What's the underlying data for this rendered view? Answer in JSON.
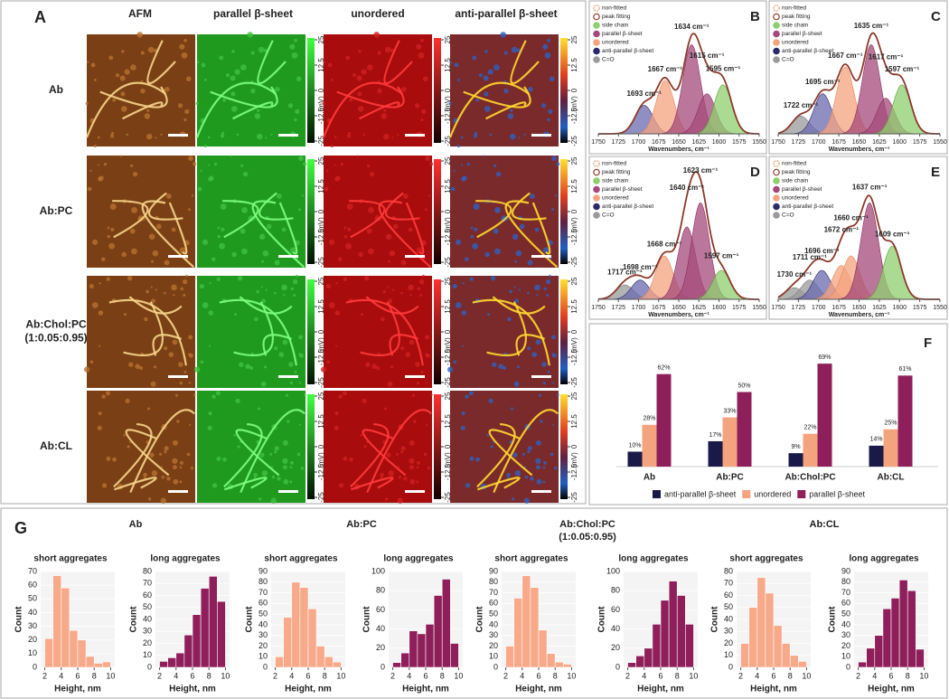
{
  "panel_a": {
    "letter": "A",
    "columns": [
      "AFM",
      "parallel β-sheet",
      "unordered",
      "anti-parallel β-sheet"
    ],
    "rows": [
      [
        "Ab"
      ],
      [
        "Ab:PC"
      ],
      [
        "Ab:Chol:PC",
        "(1:0.05:0.95)"
      ],
      [
        "Ab:CL"
      ]
    ],
    "colorbar_ticks": [
      25,
      12.5,
      0,
      -12.5,
      -25
    ],
    "colorbar_unit": "(mV)"
  },
  "panel_g": {
    "letter": "G",
    "groups": [
      [
        "Ab"
      ],
      [
        "Ab:PC"
      ],
      [
        "Ab:Chol:PC",
        "(1:0.05:0.95)"
      ],
      [
        "Ab:CL"
      ]
    ]
  },
  "chart_data": [
    {
      "type": "spectrum",
      "panel": "B",
      "xlim": [
        1750,
        1550
      ],
      "xticks": [
        1750,
        1725,
        1700,
        1675,
        1650,
        1625,
        1600,
        1575,
        1550
      ],
      "xlabel": "Wavenumbers, cm⁻¹",
      "legend": [
        {
          "name": "non-fitted",
          "color": "#e8a070"
        },
        {
          "name": "peak fitting",
          "color": "#8b3a2a"
        },
        {
          "name": "side chain",
          "color": "#8fcf6f"
        },
        {
          "name": "parallel β-sheet",
          "color": "#a4497a"
        },
        {
          "name": "unordered",
          "color": "#f4a37f"
        },
        {
          "name": "anti-parallel β-sheet",
          "color": "#2a2a6a"
        },
        {
          "name": "C=O",
          "color": "#9a9a9a"
        }
      ],
      "peaks": [
        {
          "label": "1693 cm⁻¹",
          "center": 1693,
          "height": 0.32,
          "color": "#6a6ab0",
          "label_color": "#2a2a6a"
        },
        {
          "label": "1667 cm⁻¹",
          "center": 1667,
          "height": 0.6,
          "color": "#f4a37f",
          "label_color": "#e8875a"
        },
        {
          "label": "1634 cm⁻¹",
          "center": 1634,
          "height": 1.0,
          "color": "#a4497a",
          "label_color": "#8a2a60"
        },
        {
          "label": "1615 cm⁻¹",
          "center": 1615,
          "height": 0.45,
          "color": "#a4497a",
          "label_color": "#8a2a60"
        },
        {
          "label": "1595 cm⁻¹",
          "center": 1595,
          "height": 0.55,
          "color": "#8fcf6f",
          "label_color": "#5a9a3a"
        }
      ]
    },
    {
      "type": "spectrum",
      "panel": "C",
      "xlim": [
        1750,
        1550
      ],
      "xticks": [
        1750,
        1725,
        1700,
        1675,
        1650,
        1625,
        1600,
        1575,
        1550
      ],
      "xlabel": "Wavenumbers, cm⁻¹",
      "legend": [
        {
          "name": "non-fitted",
          "color": "#e8a070"
        },
        {
          "name": "peak fitting",
          "color": "#8b3a2a"
        },
        {
          "name": "side chain",
          "color": "#8fcf6f"
        },
        {
          "name": "parallel β-sheet",
          "color": "#a4497a"
        },
        {
          "name": "unordered",
          "color": "#f4a37f"
        },
        {
          "name": "anti-parallel β-sheet",
          "color": "#2a2a6a"
        },
        {
          "name": "C=O",
          "color": "#9a9a9a"
        }
      ],
      "peaks": [
        {
          "label": "1722 cm⁻¹",
          "center": 1722,
          "height": 0.2,
          "color": "#9a9a9a",
          "label_color": "#808080"
        },
        {
          "label": "1695 cm⁻¹",
          "center": 1695,
          "height": 0.45,
          "color": "#6a6ab0",
          "label_color": "#2a2a6a"
        },
        {
          "label": "1667 cm⁻¹",
          "center": 1667,
          "height": 0.75,
          "color": "#f4a37f",
          "label_color": "#e8875a"
        },
        {
          "label": "1635 cm⁻¹",
          "center": 1635,
          "height": 1.0,
          "color": "#a4497a",
          "label_color": "#8a2a60"
        },
        {
          "label": "1617 cm⁻¹",
          "center": 1617,
          "height": 0.4,
          "color": "#a4497a",
          "label_color": "#8a2a60"
        },
        {
          "label": "1597 cm⁻¹",
          "center": 1597,
          "height": 0.55,
          "color": "#8fcf6f",
          "label_color": "#5a9a3a"
        }
      ]
    },
    {
      "type": "spectrum",
      "panel": "D",
      "xlim": [
        1750,
        1550
      ],
      "xticks": [
        1750,
        1725,
        1700,
        1675,
        1650,
        1625,
        1600,
        1575,
        1550
      ],
      "xlabel": "Wavenumbers, cm⁻¹",
      "legend": [
        {
          "name": "non-fitted",
          "color": "#e8a070"
        },
        {
          "name": "peak fitting",
          "color": "#8b3a2a"
        },
        {
          "name": "side chain",
          "color": "#8fcf6f"
        },
        {
          "name": "parallel β-sheet",
          "color": "#a4497a"
        },
        {
          "name": "unordered",
          "color": "#f4a37f"
        },
        {
          "name": "anti-parallel β-sheet",
          "color": "#2a2a6a"
        },
        {
          "name": "C=O",
          "color": "#9a9a9a"
        }
      ],
      "peaks": [
        {
          "label": "1717 cm⁻¹",
          "center": 1717,
          "height": 0.15,
          "color": "#9a9a9a",
          "label_color": "#808080"
        },
        {
          "label": "1698 cm⁻¹",
          "center": 1698,
          "height": 0.2,
          "color": "#6a6ab0",
          "label_color": "#2a2a6a"
        },
        {
          "label": "1668 cm⁻¹",
          "center": 1668,
          "height": 0.45,
          "color": "#f4a37f",
          "label_color": "#e8875a"
        },
        {
          "label": "1640 cm⁻¹",
          "center": 1640,
          "height": 0.75,
          "color": "#a4497a",
          "label_color": "#8a2a60"
        },
        {
          "label": "1623 cm⁻¹",
          "center": 1623,
          "height": 1.0,
          "color": "#a4497a",
          "label_color": "#8a2a60"
        },
        {
          "label": "1597 cm⁻¹",
          "center": 1597,
          "height": 0.3,
          "color": "#8fcf6f",
          "label_color": "#5a9a3a"
        }
      ]
    },
    {
      "type": "spectrum",
      "panel": "E",
      "xlim": [
        1750,
        1550
      ],
      "xticks": [
        1750,
        1725,
        1700,
        1675,
        1650,
        1625,
        1600,
        1575,
        1550
      ],
      "xlabel": "Wavenumbers, cm⁻¹",
      "legend": [
        {
          "name": "non-fitted",
          "color": "#e8a070"
        },
        {
          "name": "peak fitting",
          "color": "#8b3a2a"
        },
        {
          "name": "side chain",
          "color": "#8fcf6f"
        },
        {
          "name": "parallel β-sheet",
          "color": "#a4497a"
        },
        {
          "name": "unordered",
          "color": "#f4a37f"
        },
        {
          "name": "anti-parallel β-sheet",
          "color": "#2a2a6a"
        },
        {
          "name": "C=O",
          "color": "#9a9a9a"
        }
      ],
      "peaks": [
        {
          "label": "1730 cm⁻¹",
          "center": 1730,
          "height": 0.12,
          "color": "#9a9a9a",
          "label_color": "#808080"
        },
        {
          "label": "1711 cm⁻¹",
          "center": 1711,
          "height": 0.2,
          "color": "#9a9a9a",
          "label_color": "#808080"
        },
        {
          "label": "1696 cm⁻¹",
          "center": 1696,
          "height": 0.3,
          "color": "#6a6ab0",
          "label_color": "#2a2a6a"
        },
        {
          "label": "1672 cm⁻¹",
          "center": 1672,
          "height": 0.35,
          "color": "#f4a37f",
          "label_color": "#e8875a"
        },
        {
          "label": "1660 cm⁻¹",
          "center": 1660,
          "height": 0.45,
          "color": "#f4a37f",
          "label_color": "#e8875a"
        },
        {
          "label": "1637 cm⁻¹",
          "center": 1637,
          "height": 1.0,
          "color": "#a4497a",
          "label_color": "#8a2a60"
        },
        {
          "label": "1609 cm⁻¹",
          "center": 1609,
          "height": 0.55,
          "color": "#8fcf6f",
          "label_color": "#5a9a3a"
        }
      ]
    },
    {
      "type": "bar",
      "panel": "F",
      "categories": [
        "Ab",
        "Ab:PC",
        "Ab:Chol:PC",
        "Ab:CL"
      ],
      "series": [
        {
          "name": "anti-parallel β-sheet",
          "color": "#1a1a48",
          "values": [
            10,
            17,
            9,
            14
          ],
          "value_labels": [
            "10%",
            "17%",
            "9%",
            "14%"
          ]
        },
        {
          "name": "unordered",
          "color": "#f4a37f",
          "values": [
            28,
            33,
            22,
            25
          ],
          "value_labels": [
            "28%",
            "33%",
            "22%",
            "25%"
          ]
        },
        {
          "name": "parallel β-sheet",
          "color": "#8e1f5a",
          "values": [
            62,
            50,
            69,
            61
          ],
          "value_labels": [
            "62%",
            "50%",
            "69%",
            "61%"
          ]
        }
      ]
    },
    {
      "type": "histogram",
      "title": "short aggregates",
      "xlabel": "Height, nm",
      "ylabel": "Count",
      "color": "#f7a98a",
      "bins": [
        2,
        3,
        4,
        5,
        6,
        7,
        8,
        9,
        10
      ],
      "values": [
        21,
        67,
        58,
        27,
        20,
        8,
        3,
        4
      ],
      "xlim": [
        1.5,
        10.5
      ],
      "xticks": [
        2,
        4,
        6,
        8,
        10
      ],
      "ylim": [
        0,
        70
      ],
      "yticks": [
        0,
        10,
        20,
        30,
        40,
        50,
        60,
        70
      ]
    },
    {
      "type": "histogram",
      "title": "long aggregates",
      "xlabel": "Height, nm",
      "ylabel": "Count",
      "color": "#8e1f5a",
      "bins": [
        2,
        3,
        4,
        5,
        6,
        7,
        8,
        9,
        10
      ],
      "values": [
        5,
        8,
        12,
        27,
        44,
        66,
        76,
        55
      ],
      "xlim": [
        1.5,
        10.5
      ],
      "xticks": [
        2,
        4,
        6,
        8,
        10
      ],
      "ylim": [
        0,
        80
      ],
      "yticks": [
        0,
        10,
        20,
        30,
        40,
        50,
        60,
        70,
        80
      ]
    },
    {
      "type": "histogram",
      "title": "short aggregates",
      "xlabel": "Height, nm",
      "ylabel": "Count",
      "color": "#f7a98a",
      "bins": [
        2,
        3,
        4,
        5,
        6,
        7,
        8,
        9,
        10
      ],
      "values": [
        10,
        47,
        80,
        75,
        55,
        20,
        10,
        5
      ],
      "xlim": [
        1.5,
        10.5
      ],
      "xticks": [
        2,
        4,
        6,
        8,
        10
      ],
      "ylim": [
        0,
        90
      ],
      "yticks": [
        0,
        10,
        20,
        30,
        40,
        50,
        60,
        70,
        80,
        90
      ]
    },
    {
      "type": "histogram",
      "title": "long aggregates",
      "xlabel": "Height, nm",
      "ylabel": "Count",
      "color": "#8e1f5a",
      "bins": [
        2,
        3,
        4,
        5,
        6,
        7,
        8,
        9,
        10
      ],
      "values": [
        5,
        15,
        38,
        35,
        45,
        75,
        92,
        25
      ],
      "xlim": [
        1.5,
        10.5
      ],
      "xticks": [
        2,
        4,
        6,
        8,
        10
      ],
      "ylim": [
        0,
        100
      ],
      "yticks": [
        0,
        20,
        40,
        60,
        80,
        100
      ]
    },
    {
      "type": "histogram",
      "title": "short aggregates",
      "xlabel": "Height, nm",
      "ylabel": "Count",
      "color": "#f7a98a",
      "bins": [
        2,
        3,
        4,
        5,
        6,
        7,
        8,
        9,
        10
      ],
      "values": [
        20,
        65,
        86,
        75,
        35,
        13,
        5,
        3
      ],
      "xlim": [
        1.5,
        10.5
      ],
      "xticks": [
        2,
        4,
        6,
        8,
        10
      ],
      "ylim": [
        0,
        90
      ],
      "yticks": [
        0,
        10,
        20,
        30,
        40,
        50,
        60,
        70,
        80,
        90
      ]
    },
    {
      "type": "histogram",
      "title": "long aggregates",
      "xlabel": "Height, nm",
      "ylabel": "Count",
      "color": "#8e1f5a",
      "bins": [
        2,
        3,
        4,
        5,
        6,
        7,
        8,
        9,
        10
      ],
      "values": [
        5,
        12,
        20,
        45,
        70,
        90,
        75,
        45
      ],
      "xlim": [
        1.5,
        10.5
      ],
      "xticks": [
        2,
        4,
        6,
        8,
        10
      ],
      "ylim": [
        0,
        100
      ],
      "yticks": [
        0,
        20,
        40,
        60,
        80,
        100
      ]
    },
    {
      "type": "histogram",
      "title": "short aggregates",
      "xlabel": "Height, nm",
      "ylabel": "Count",
      "color": "#f7a98a",
      "bins": [
        2,
        3,
        4,
        5,
        6,
        7,
        8,
        9,
        10
      ],
      "values": [
        20,
        50,
        75,
        62,
        35,
        20,
        10,
        5
      ],
      "xlim": [
        1.5,
        10.5
      ],
      "xticks": [
        2,
        4,
        6,
        8,
        10
      ],
      "ylim": [
        0,
        80
      ],
      "yticks": [
        0,
        10,
        20,
        30,
        40,
        50,
        60,
        70,
        80
      ]
    },
    {
      "type": "histogram",
      "title": "long aggregates",
      "xlabel": "Height, nm",
      "ylabel": "Count",
      "color": "#8e1f5a",
      "bins": [
        2,
        3,
        4,
        5,
        6,
        7,
        8,
        9,
        10
      ],
      "values": [
        5,
        18,
        30,
        55,
        65,
        82,
        72,
        17
      ],
      "xlim": [
        1.5,
        10.5
      ],
      "xticks": [
        2,
        4,
        6,
        8,
        10
      ],
      "ylim": [
        0,
        90
      ],
      "yticks": [
        0,
        10,
        20,
        30,
        40,
        50,
        60,
        70,
        80,
        90
      ]
    }
  ]
}
